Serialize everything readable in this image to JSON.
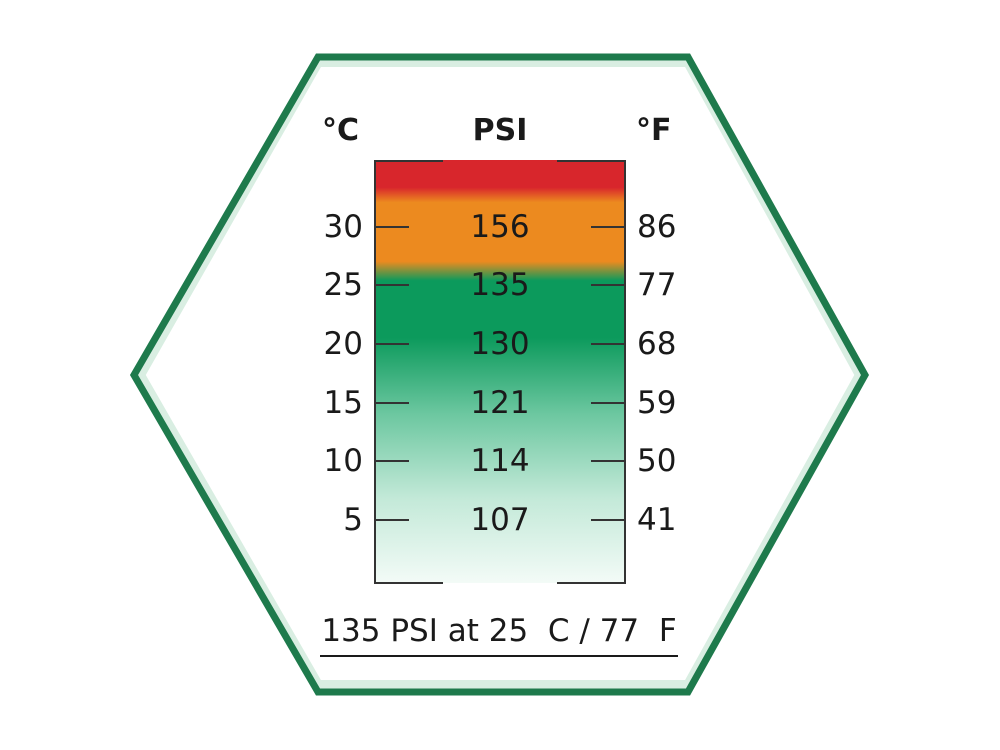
{
  "headers": {
    "celsius": "°C",
    "psi": "PSI",
    "fahrenheit": "°F"
  },
  "rows": [
    {
      "c": "30",
      "psi": "156",
      "f": "86"
    },
    {
      "c": "25",
      "psi": "135",
      "f": "77"
    },
    {
      "c": "20",
      "psi": "130",
      "f": "68"
    },
    {
      "c": "15",
      "psi": "121",
      "f": "59"
    },
    {
      "c": "10",
      "psi": "114",
      "f": "50"
    },
    {
      "c": "5",
      "psi": "107",
      "f": "41"
    }
  ],
  "footer": "135 PSI at 25  C / 77  F",
  "colors": {
    "frame": "#1e7a4c",
    "red": "#d8262c",
    "orange": "#ec8a1f",
    "green": "#0c9a5c"
  }
}
